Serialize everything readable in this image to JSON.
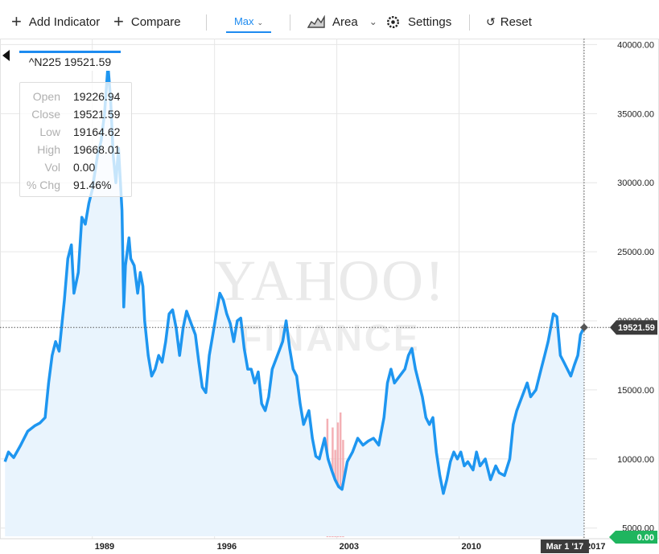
{
  "toolbar": {
    "add_indicator": "Add Indicator",
    "compare": "Compare",
    "range": "Max",
    "chart_type": "Area",
    "settings": "Settings",
    "reset": "Reset"
  },
  "tooltip": {
    "title": "^N225 19521.59",
    "rows": [
      {
        "label": "Open",
        "value": "19226.94"
      },
      {
        "label": "Close",
        "value": "19521.59"
      },
      {
        "label": "Low",
        "value": "19164.62"
      },
      {
        "label": "High",
        "value": "19668.01"
      },
      {
        "label": "Vol",
        "value": "0.00"
      },
      {
        "label": "% Chg",
        "value": "91.46%"
      }
    ]
  },
  "colors": {
    "line": "#1e96f0",
    "area": "#e9f4fd",
    "volume": "#f2a2a8",
    "price_tag": "#3c3c3c",
    "volume_tag": "#1fb55f"
  },
  "chart_data": {
    "type": "area",
    "title": "",
    "watermark": [
      "YAHOO!",
      "FINANCE"
    ],
    "xlabel": "",
    "ylabel": "",
    "x_ticks": [
      {
        "label": "1989",
        "x": 1989
      },
      {
        "label": "1996",
        "x": 1996
      },
      {
        "label": "2003",
        "x": 2003
      },
      {
        "label": "2010",
        "x": 2010
      },
      {
        "label": "2017",
        "x": 2017.12
      }
    ],
    "y_ticks": [
      {
        "label": "5000.00",
        "value": 5000
      },
      {
        "label": "10000.00",
        "value": 10000
      },
      {
        "label": "15000.00",
        "value": 15000
      },
      {
        "label": "20000.00",
        "value": 20000
      },
      {
        "label": "25000.00",
        "value": 25000
      },
      {
        "label": "30000.00",
        "value": 30000
      },
      {
        "label": "35000.00",
        "value": 35000
      },
      {
        "label": "40000.00",
        "value": 40000
      }
    ],
    "xlim": [
      1983.9,
      2017.9
    ],
    "ylim": [
      4400,
      40200
    ],
    "current_price": {
      "label": "19521.59",
      "value": 19521.59
    },
    "volume_tag": {
      "label": "0.00"
    },
    "crosshair_date": {
      "label": "Mar 1 '17",
      "x": 2017.16
    },
    "grid": true,
    "series": [
      {
        "points": [
          [
            1984.0,
            9800
          ],
          [
            1984.2,
            10500
          ],
          [
            1984.5,
            10100
          ],
          [
            1984.9,
            11000
          ],
          [
            1985.3,
            12000
          ],
          [
            1985.7,
            12400
          ],
          [
            1986.0,
            12600
          ],
          [
            1986.3,
            13000
          ],
          [
            1986.5,
            15500
          ],
          [
            1986.7,
            17500
          ],
          [
            1986.9,
            18500
          ],
          [
            1987.1,
            17800
          ],
          [
            1987.4,
            21500
          ],
          [
            1987.6,
            24500
          ],
          [
            1987.8,
            25500
          ],
          [
            1987.95,
            22000
          ],
          [
            1988.2,
            23500
          ],
          [
            1988.4,
            27500
          ],
          [
            1988.6,
            27000
          ],
          [
            1988.8,
            28500
          ],
          [
            1989.0,
            29500
          ],
          [
            1989.3,
            32000
          ],
          [
            1989.5,
            33000
          ],
          [
            1989.7,
            35000
          ],
          [
            1989.9,
            38500
          ],
          [
            1990.05,
            36000
          ],
          [
            1990.2,
            32000
          ],
          [
            1990.35,
            30000
          ],
          [
            1990.5,
            32500
          ],
          [
            1990.7,
            28000
          ],
          [
            1990.8,
            21000
          ],
          [
            1990.9,
            24000
          ],
          [
            1991.1,
            26000
          ],
          [
            1991.2,
            24500
          ],
          [
            1991.4,
            24000
          ],
          [
            1991.6,
            22000
          ],
          [
            1991.75,
            23500
          ],
          [
            1991.9,
            22500
          ],
          [
            1992.0,
            20000
          ],
          [
            1992.2,
            17500
          ],
          [
            1992.4,
            16000
          ],
          [
            1992.6,
            16500
          ],
          [
            1992.8,
            17500
          ],
          [
            1993.0,
            17000
          ],
          [
            1993.2,
            18500
          ],
          [
            1993.4,
            20500
          ],
          [
            1993.6,
            20800
          ],
          [
            1993.8,
            19500
          ],
          [
            1994.0,
            17500
          ],
          [
            1994.2,
            19500
          ],
          [
            1994.4,
            20700
          ],
          [
            1994.6,
            20000
          ],
          [
            1994.9,
            19000
          ],
          [
            1995.1,
            17000
          ],
          [
            1995.3,
            15200
          ],
          [
            1995.5,
            14800
          ],
          [
            1995.7,
            17500
          ],
          [
            1995.9,
            19000
          ],
          [
            1996.1,
            20500
          ],
          [
            1996.3,
            22000
          ],
          [
            1996.5,
            21500
          ],
          [
            1996.7,
            20500
          ],
          [
            1996.9,
            19800
          ],
          [
            1997.1,
            18500
          ],
          [
            1997.3,
            20000
          ],
          [
            1997.5,
            20200
          ],
          [
            1997.7,
            18000
          ],
          [
            1997.9,
            16500
          ],
          [
            1998.1,
            16500
          ],
          [
            1998.3,
            15500
          ],
          [
            1998.5,
            16300
          ],
          [
            1998.7,
            14000
          ],
          [
            1998.9,
            13500
          ],
          [
            1999.1,
            14500
          ],
          [
            1999.3,
            16500
          ],
          [
            1999.6,
            17500
          ],
          [
            1999.9,
            18500
          ],
          [
            2000.1,
            20000
          ],
          [
            2000.3,
            18000
          ],
          [
            2000.5,
            16500
          ],
          [
            2000.7,
            16000
          ],
          [
            2000.9,
            14000
          ],
          [
            2001.1,
            12500
          ],
          [
            2001.4,
            13500
          ],
          [
            2001.6,
            11500
          ],
          [
            2001.8,
            10200
          ],
          [
            2002.0,
            10000
          ],
          [
            2002.3,
            11500
          ],
          [
            2002.5,
            10000
          ],
          [
            2002.7,
            9200
          ],
          [
            2002.9,
            8500
          ],
          [
            2003.1,
            8000
          ],
          [
            2003.3,
            7800
          ],
          [
            2003.6,
            9800
          ],
          [
            2003.9,
            10500
          ],
          [
            2004.2,
            11500
          ],
          [
            2004.5,
            11000
          ],
          [
            2004.8,
            11300
          ],
          [
            2005.1,
            11500
          ],
          [
            2005.4,
            11000
          ],
          [
            2005.7,
            13000
          ],
          [
            2005.9,
            15500
          ],
          [
            2006.1,
            16500
          ],
          [
            2006.3,
            15500
          ],
          [
            2006.6,
            16000
          ],
          [
            2006.9,
            16500
          ],
          [
            2007.1,
            17500
          ],
          [
            2007.3,
            18000
          ],
          [
            2007.5,
            16500
          ],
          [
            2007.7,
            15500
          ],
          [
            2007.9,
            14500
          ],
          [
            2008.1,
            13000
          ],
          [
            2008.3,
            12500
          ],
          [
            2008.5,
            13000
          ],
          [
            2008.7,
            10500
          ],
          [
            2008.9,
            8800
          ],
          [
            2009.1,
            7500
          ],
          [
            2009.3,
            8500
          ],
          [
            2009.5,
            9800
          ],
          [
            2009.7,
            10500
          ],
          [
            2009.9,
            10000
          ],
          [
            2010.1,
            10500
          ],
          [
            2010.3,
            9500
          ],
          [
            2010.5,
            9800
          ],
          [
            2010.8,
            9200
          ],
          [
            2011.0,
            10500
          ],
          [
            2011.2,
            9500
          ],
          [
            2011.5,
            10000
          ],
          [
            2011.8,
            8500
          ],
          [
            2012.1,
            9500
          ],
          [
            2012.3,
            9000
          ],
          [
            2012.6,
            8800
          ],
          [
            2012.9,
            10000
          ],
          [
            2013.1,
            12500
          ],
          [
            2013.3,
            13500
          ],
          [
            2013.6,
            14500
          ],
          [
            2013.9,
            15500
          ],
          [
            2014.1,
            14500
          ],
          [
            2014.4,
            15000
          ],
          [
            2014.7,
            16500
          ],
          [
            2014.9,
            17500
          ],
          [
            2015.1,
            18500
          ],
          [
            2015.4,
            20500
          ],
          [
            2015.6,
            20300
          ],
          [
            2015.8,
            17500
          ],
          [
            2016.0,
            17000
          ],
          [
            2016.2,
            16500
          ],
          [
            2016.4,
            16000
          ],
          [
            2016.6,
            16800
          ],
          [
            2016.8,
            17500
          ],
          [
            2016.95,
            19000
          ],
          [
            2017.15,
            19521.59
          ]
        ]
      }
    ],
    "volume_bars": [
      {
        "x": 2002.45,
        "value": 0.95
      },
      {
        "x": 2002.6,
        "value": 0.55
      },
      {
        "x": 2002.75,
        "value": 0.88
      },
      {
        "x": 2002.9,
        "value": 0.7
      },
      {
        "x": 2003.05,
        "value": 0.92
      },
      {
        "x": 2003.2,
        "value": 1.0
      },
      {
        "x": 2003.35,
        "value": 0.78
      }
    ]
  }
}
